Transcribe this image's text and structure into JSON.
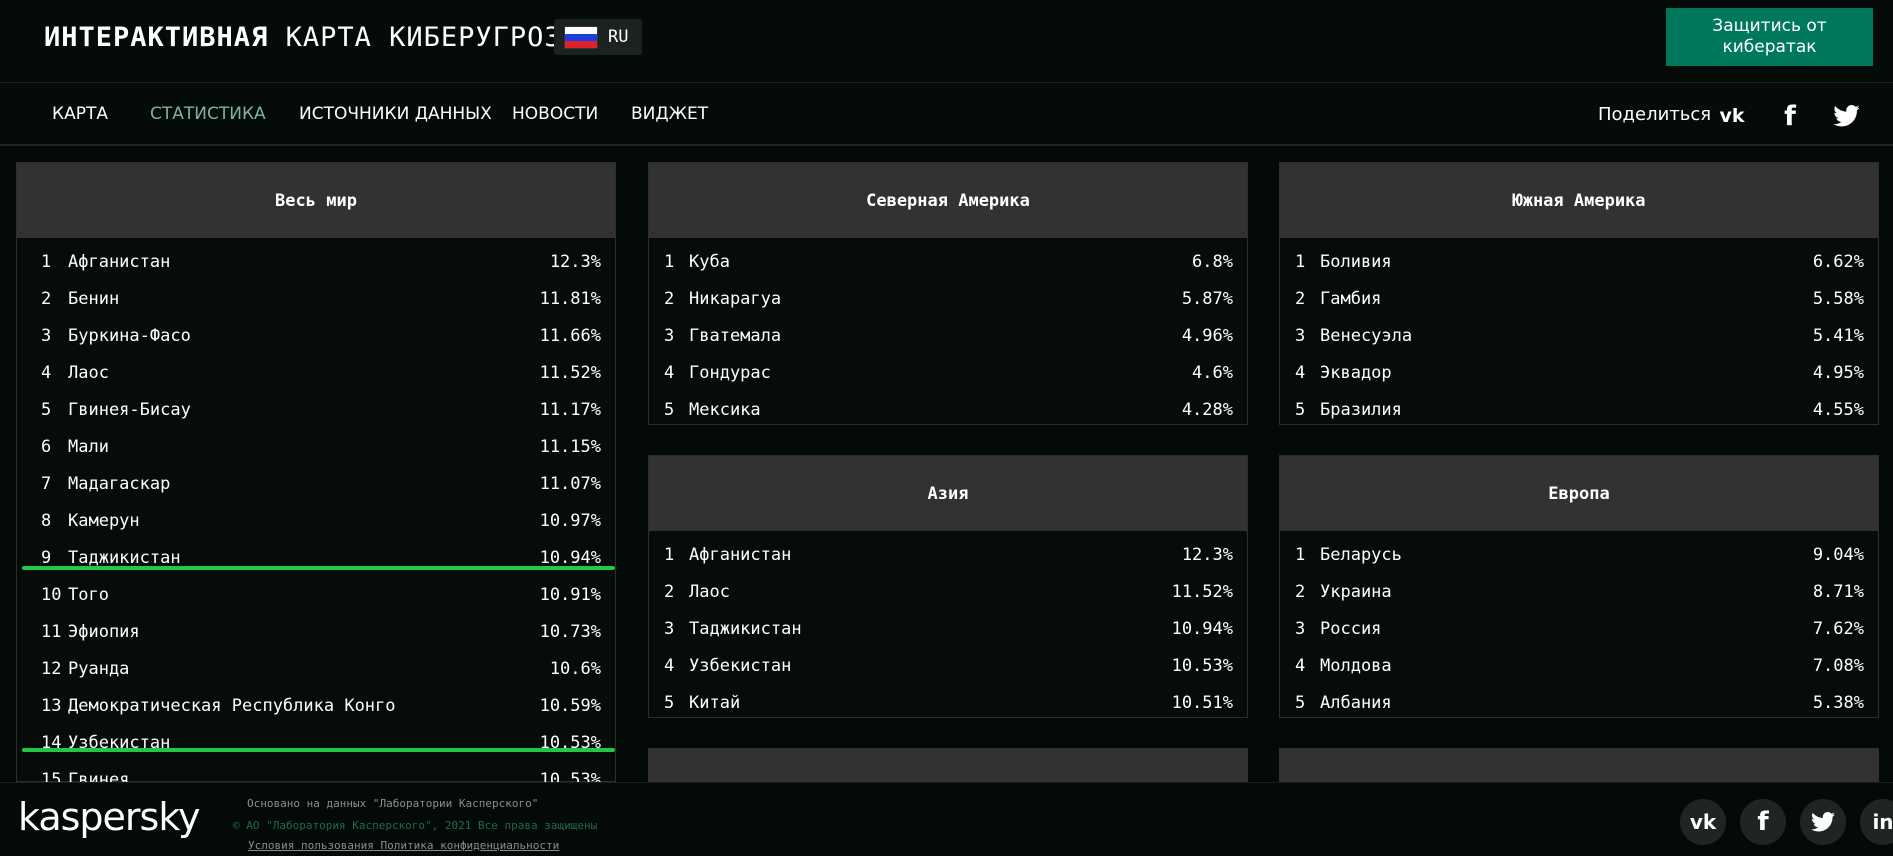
{
  "header": {
    "title_bold": "ИНТЕРАКТИВНАЯ",
    "title_rest": "КАРТА КИБЕРУГРОЗ",
    "lang": "RU",
    "cta": "Защитись от кибератак"
  },
  "nav": {
    "items": [
      "КАРТА",
      "СТАТИСТИКА",
      "ИСТОЧНИКИ ДАННЫХ",
      "НОВОСТИ",
      "ВИДЖЕТ"
    ],
    "share_label": "Поделиться"
  },
  "colors": {
    "accent": "#00785e",
    "nav_active": "#7bb49b",
    "highlight": "#21c746",
    "panel_header": "#323232"
  },
  "panels": {
    "world": {
      "title": "Весь мир",
      "rows": [
        {
          "rank": "1",
          "name": "Афганистан",
          "value": "12.3%"
        },
        {
          "rank": "2",
          "name": "Бенин",
          "value": "11.81%"
        },
        {
          "rank": "3",
          "name": "Буркина-Фасо",
          "value": "11.66%"
        },
        {
          "rank": "4",
          "name": "Лаос",
          "value": "11.52%"
        },
        {
          "rank": "5",
          "name": "Гвинея-Бисау",
          "value": "11.17%"
        },
        {
          "rank": "6",
          "name": "Мали",
          "value": "11.15%"
        },
        {
          "rank": "7",
          "name": "Мадагаскар",
          "value": "11.07%"
        },
        {
          "rank": "8",
          "name": "Камерун",
          "value": "10.97%"
        },
        {
          "rank": "9",
          "name": "Таджикистан",
          "value": "10.94%"
        },
        {
          "rank": "10",
          "name": "Того",
          "value": "10.91%"
        },
        {
          "rank": "11",
          "name": "Эфиопия",
          "value": "10.73%"
        },
        {
          "rank": "12",
          "name": "Руанда",
          "value": "10.6%"
        },
        {
          "rank": "13",
          "name": "Демократическая Республика Конго",
          "value": "10.59%"
        },
        {
          "rank": "14",
          "name": "Узбекистан",
          "value": "10.53%"
        },
        {
          "rank": "15",
          "name": "Гвинея",
          "value": "10.53%"
        }
      ]
    },
    "north_america": {
      "title": "Северная Америка",
      "rows": [
        {
          "rank": "1",
          "name": "Куба",
          "value": "6.8%"
        },
        {
          "rank": "2",
          "name": "Никарагуа",
          "value": "5.87%"
        },
        {
          "rank": "3",
          "name": "Гватемала",
          "value": "4.96%"
        },
        {
          "rank": "4",
          "name": "Гондурас",
          "value": "4.6%"
        },
        {
          "rank": "5",
          "name": "Мексика",
          "value": "4.28%"
        }
      ]
    },
    "south_america": {
      "title": "Южная Америка",
      "rows": [
        {
          "rank": "1",
          "name": "Боливия",
          "value": "6.62%"
        },
        {
          "rank": "2",
          "name": "Гамбия",
          "value": "5.58%"
        },
        {
          "rank": "3",
          "name": "Венесуэла",
          "value": "5.41%"
        },
        {
          "rank": "4",
          "name": "Эквадор",
          "value": "4.95%"
        },
        {
          "rank": "5",
          "name": "Бразилия",
          "value": "4.55%"
        }
      ]
    },
    "asia": {
      "title": "Азия",
      "rows": [
        {
          "rank": "1",
          "name": "Афганистан",
          "value": "12.3%"
        },
        {
          "rank": "2",
          "name": "Лаос",
          "value": "11.52%"
        },
        {
          "rank": "3",
          "name": "Таджикистан",
          "value": "10.94%"
        },
        {
          "rank": "4",
          "name": "Узбекистан",
          "value": "10.53%"
        },
        {
          "rank": "5",
          "name": "Китай",
          "value": "10.51%"
        }
      ]
    },
    "europe": {
      "title": "Европа",
      "rows": [
        {
          "rank": "1",
          "name": "Беларусь",
          "value": "9.04%"
        },
        {
          "rank": "2",
          "name": "Украина",
          "value": "8.71%"
        },
        {
          "rank": "3",
          "name": "Россия",
          "value": "7.62%"
        },
        {
          "rank": "4",
          "name": "Молдова",
          "value": "7.08%"
        },
        {
          "rank": "5",
          "name": "Албания",
          "value": "5.38%"
        }
      ]
    }
  },
  "footer": {
    "logo": "kaspersky",
    "line1": "Основано на данных \"Лаборатории Касперского\"",
    "line2": "© АО \"Лаборатория Касперского\", 2021 Все права защищены",
    "link_terms": "Условия пользования",
    "link_privacy": "Политика конфиденциальности"
  }
}
